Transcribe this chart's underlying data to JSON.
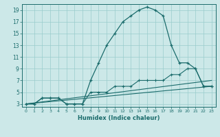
{
  "title": "",
  "xlabel": "Humidex (Indice chaleur)",
  "bg_color": "#cce8e8",
  "grid_color": "#99cccc",
  "line_color": "#1a6b6b",
  "xlim": [
    -0.5,
    23.5
  ],
  "ylim": [
    2.5,
    20.0
  ],
  "xticks": [
    0,
    1,
    2,
    3,
    4,
    5,
    6,
    7,
    8,
    9,
    10,
    11,
    12,
    13,
    14,
    15,
    16,
    17,
    18,
    19,
    20,
    21,
    22,
    23
  ],
  "yticks": [
    3,
    5,
    7,
    9,
    11,
    13,
    15,
    17,
    19
  ],
  "line1_x": [
    0,
    1,
    2,
    3,
    4,
    5,
    6,
    7,
    8,
    9,
    10,
    11,
    12,
    13,
    14,
    15,
    16,
    17,
    18,
    19,
    20,
    21,
    22,
    23
  ],
  "line1_y": [
    3,
    3,
    4,
    4,
    4,
    3,
    3,
    3,
    7,
    10,
    13,
    15,
    17,
    18,
    19,
    19.5,
    19,
    18,
    13,
    10,
    10,
    9,
    6,
    6
  ],
  "line2_x": [
    0,
    1,
    2,
    3,
    4,
    5,
    6,
    7,
    8,
    9,
    10,
    11,
    12,
    13,
    14,
    15,
    16,
    17,
    18,
    19,
    20,
    21,
    22,
    23
  ],
  "line2_y": [
    3,
    3,
    4,
    4,
    4,
    3,
    3,
    3,
    5,
    5,
    5,
    6,
    6,
    6,
    7,
    7,
    7,
    7,
    8,
    8,
    9,
    9,
    6,
    6
  ],
  "line3_x": [
    0,
    23
  ],
  "line3_y": [
    3,
    6
  ],
  "line4_x": [
    0,
    23
  ],
  "line4_y": [
    3,
    7
  ]
}
